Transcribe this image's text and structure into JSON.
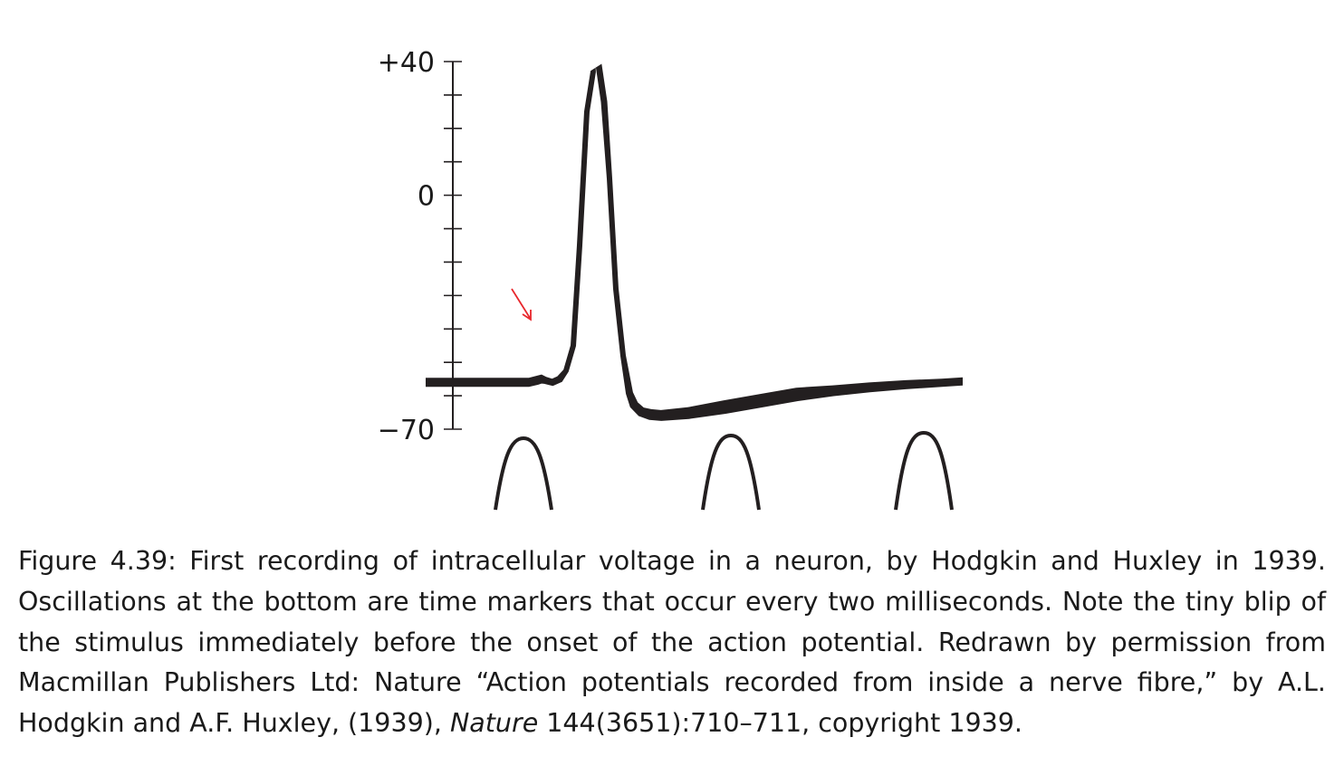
{
  "chart_data": {
    "type": "line",
    "ylim": [
      -70,
      40
    ],
    "y_tick_labels": [
      "+40",
      "0",
      "−70"
    ],
    "y_label_values": [
      40,
      0,
      -70
    ],
    "y_minor_tick_step": 10,
    "trace": {
      "name": "",
      "color": "#231f20",
      "points": []
    },
    "time_markers": {
      "interval_ms": 2,
      "count": 3,
      "color": "#231f20"
    },
    "annotation": {
      "color": "#e8262b"
    },
    "grid": false,
    "legend": "none"
  },
  "caption": {
    "part1": "Figure 4.39: First recording of intracellular voltage in a neuron, by Hodgkin and Huxley in 1939. Oscillations at the bottom are time markers that occur every two milliseconds. Note the tiny blip of the stimulus immediately before the onset of the action potential. Redrawn by permission from Macmillan Publishers Ltd: Nature “Action potentials recorded from inside a nerve fibre,” by A.L. Hodgkin and A.F. Huxley, (1939),",
    "journal": "Nature",
    "part2": "144(3651):710–711, copyright 1939."
  }
}
